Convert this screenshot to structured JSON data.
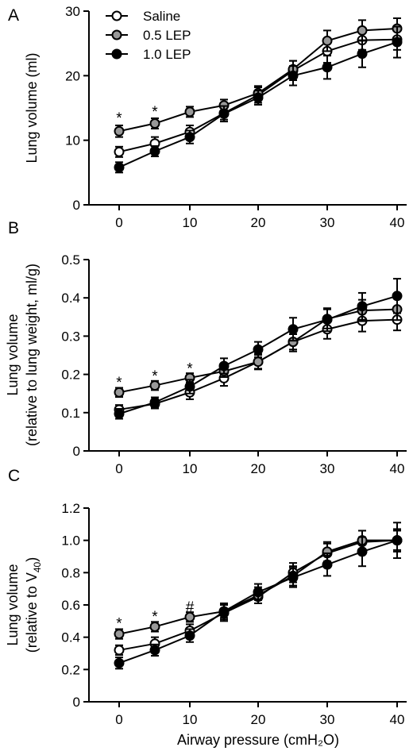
{
  "figure": {
    "legend": [
      "Saline",
      "0.5 LEP",
      "1.0 LEP"
    ],
    "xlabel": "Airway pressure (cmH₂O)",
    "series_colors": {
      "Saline": "#ffffff",
      "0.5 LEP": "#999999",
      "1.0 LEP": "#000000"
    }
  },
  "chart_data": [
    {
      "type": "line",
      "panel": "A",
      "ylabel": [
        "Lung volume (ml)"
      ],
      "x": [
        0,
        5,
        10,
        15,
        20,
        25,
        30,
        35,
        40
      ],
      "x_ticks": [
        0,
        10,
        20,
        30,
        40
      ],
      "ylim": [
        0,
        30
      ],
      "y_ticks": [
        0,
        10,
        20,
        30
      ],
      "y_tick_labels": [
        "0",
        "10",
        "20",
        "30"
      ],
      "series": [
        {
          "name": "Saline",
          "values": [
            8.2,
            9.5,
            11.3,
            14.2,
            17.0,
            20.8,
            23.8,
            25.5,
            25.6
          ],
          "err": [
            0.8,
            1.0,
            1.0,
            1.0,
            1.2,
            1.5,
            1.8,
            1.5,
            1.6
          ]
        },
        {
          "name": "0.5 LEP",
          "values": [
            11.4,
            12.6,
            14.4,
            15.4,
            17.3,
            21.0,
            25.4,
            27.0,
            27.3
          ],
          "err": [
            0.9,
            0.8,
            0.8,
            0.9,
            1.1,
            1.3,
            1.6,
            1.6,
            1.6
          ]
        },
        {
          "name": "1.0 LEP",
          "values": [
            5.8,
            8.3,
            10.5,
            14.1,
            16.6,
            20.0,
            21.3,
            23.4,
            25.2
          ],
          "err": [
            0.8,
            0.8,
            1.0,
            1.2,
            1.1,
            1.5,
            1.8,
            2.1,
            2.4
          ]
        }
      ],
      "annotations": [
        {
          "x": 0,
          "y": 13.5,
          "text": "*"
        },
        {
          "x": 5,
          "y": 14.5,
          "text": "*"
        }
      ]
    },
    {
      "type": "line",
      "panel": "B",
      "ylabel": [
        "Lung volume",
        "(relative to lung weight, ml/g)"
      ],
      "x": [
        0,
        5,
        10,
        15,
        20,
        25,
        30,
        35,
        40
      ],
      "x_ticks": [
        0,
        10,
        20,
        30,
        40
      ],
      "ylim": [
        0,
        0.5
      ],
      "y_ticks": [
        0,
        0.1,
        0.2,
        0.3,
        0.4,
        0.5
      ],
      "y_tick_labels": [
        "0",
        "0.1",
        "0.2",
        "0.3",
        "0.4",
        "0.5"
      ],
      "series": [
        {
          "name": "Saline",
          "values": [
            0.108,
            0.123,
            0.153,
            0.19,
            0.233,
            0.285,
            0.318,
            0.34,
            0.343
          ],
          "err": [
            0.012,
            0.012,
            0.018,
            0.02,
            0.02,
            0.025,
            0.025,
            0.028,
            0.028
          ]
        },
        {
          "name": "0.5 LEP",
          "values": [
            0.153,
            0.171,
            0.191,
            0.208,
            0.233,
            0.285,
            0.345,
            0.367,
            0.37
          ],
          "err": [
            0.012,
            0.012,
            0.012,
            0.015,
            0.018,
            0.02,
            0.025,
            0.028,
            0.028
          ]
        },
        {
          "name": "1.0 LEP",
          "values": [
            0.097,
            0.127,
            0.168,
            0.222,
            0.265,
            0.318,
            0.343,
            0.378,
            0.405
          ],
          "err": [
            0.013,
            0.013,
            0.018,
            0.02,
            0.02,
            0.03,
            0.03,
            0.035,
            0.045
          ]
        }
      ],
      "annotations": [
        {
          "x": 0,
          "y": 0.18,
          "text": "*"
        },
        {
          "x": 5,
          "y": 0.197,
          "text": "*"
        },
        {
          "x": 10,
          "y": 0.217,
          "text": "*"
        }
      ]
    },
    {
      "type": "line",
      "panel": "C",
      "ylabel": [
        "Lung volume",
        "(relative to V40)"
      ],
      "x": [
        0,
        5,
        10,
        15,
        20,
        25,
        30,
        35,
        40
      ],
      "x_ticks": [
        0,
        10,
        20,
        30,
        40
      ],
      "ylim": [
        0,
        1.2
      ],
      "y_ticks": [
        0,
        0.2,
        0.4,
        0.6,
        0.8,
        1.0,
        1.2
      ],
      "y_tick_labels": [
        "0",
        "0.2",
        "0.4",
        "0.6",
        "0.8",
        "1.0",
        "1.2"
      ],
      "series": [
        {
          "name": "Saline",
          "values": [
            0.32,
            0.36,
            0.44,
            0.55,
            0.65,
            0.8,
            0.92,
            0.99,
            1.0
          ],
          "err": [
            0.03,
            0.04,
            0.04,
            0.05,
            0.04,
            0.06,
            0.06,
            0.07,
            0.07
          ]
        },
        {
          "name": "0.5 LEP",
          "values": [
            0.42,
            0.465,
            0.525,
            0.56,
            0.66,
            0.78,
            0.93,
            1.0,
            1.0
          ],
          "err": [
            0.03,
            0.03,
            0.03,
            0.04,
            0.05,
            0.06,
            0.06,
            0.06,
            0.06
          ]
        },
        {
          "name": "1.0 LEP",
          "values": [
            0.24,
            0.32,
            0.41,
            0.56,
            0.68,
            0.77,
            0.85,
            0.93,
            1.0
          ],
          "err": [
            0.035,
            0.035,
            0.04,
            0.05,
            0.05,
            0.06,
            0.07,
            0.09,
            0.11
          ]
        }
      ],
      "annotations": [
        {
          "x": 0,
          "y": 0.49,
          "text": "*"
        },
        {
          "x": 5,
          "y": 0.53,
          "text": "*"
        },
        {
          "x": 10,
          "y": 0.59,
          "text": "#"
        }
      ]
    }
  ]
}
